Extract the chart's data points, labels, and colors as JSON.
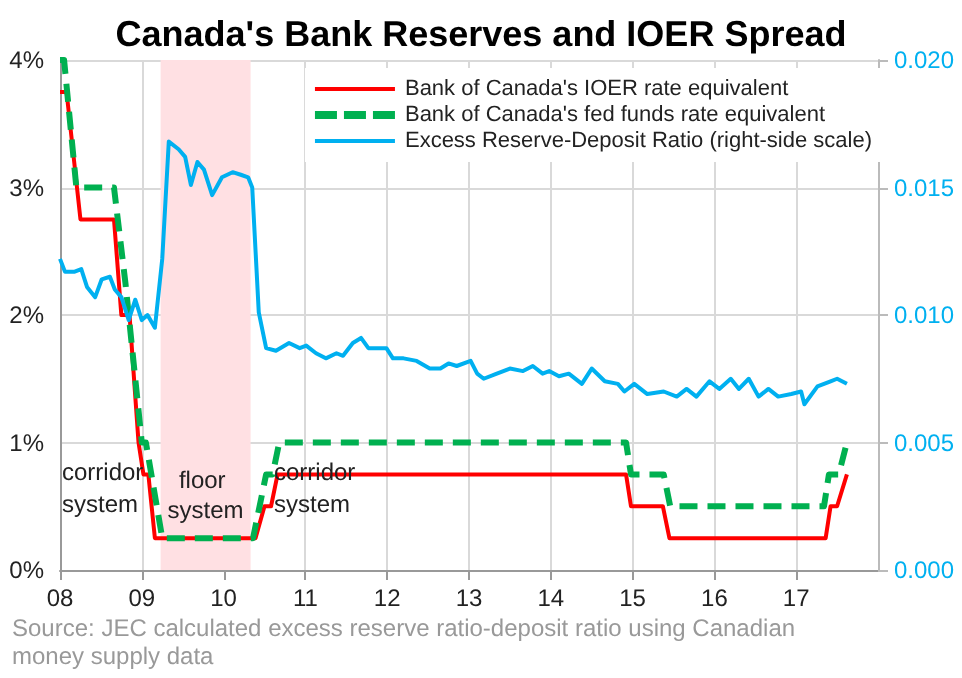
{
  "chart_data": {
    "type": "line",
    "title": "Canada's Bank Reserves and IOER Spread",
    "xlim": [
      2008,
      2018
    ],
    "xticks": [
      {
        "value": 2008,
        "label": "08"
      },
      {
        "value": 2009,
        "label": "09"
      },
      {
        "value": 2010,
        "label": "10"
      },
      {
        "value": 2011,
        "label": "11"
      },
      {
        "value": 2012,
        "label": "12"
      },
      {
        "value": 2013,
        "label": "13"
      },
      {
        "value": 2014,
        "label": "14"
      },
      {
        "value": 2015,
        "label": "15"
      },
      {
        "value": 2016,
        "label": "16"
      },
      {
        "value": 2017,
        "label": "17"
      }
    ],
    "ylim": [
      0,
      4
    ],
    "yticks": [
      {
        "value": 0,
        "label": "0%"
      },
      {
        "value": 1,
        "label": "1%"
      },
      {
        "value": 2,
        "label": "2%"
      },
      {
        "value": 3,
        "label": "3%"
      },
      {
        "value": 4,
        "label": "4%"
      }
    ],
    "y2lim": [
      0,
      0.02
    ],
    "y2ticks": [
      {
        "value": 0,
        "label": "0.000"
      },
      {
        "value": 0.005,
        "label": "0.005"
      },
      {
        "value": 0.01,
        "label": "0.010"
      },
      {
        "value": 0.015,
        "label": "0.015"
      },
      {
        "value": 0.02,
        "label": "0.020"
      }
    ],
    "grid": true,
    "legend": "top right",
    "marker": "none",
    "series": [
      {
        "name": "Bank of Canada's IOER rate equivalent",
        "color": "#ff0000",
        "line_style": "solid",
        "x": [
          2008,
          2008.08,
          2008.25,
          2008.66,
          2008.75,
          2008.85,
          2008.96,
          2009.02,
          2009.08,
          2009.16,
          2010.39,
          2010.5,
          2010.58,
          2010.66,
          2014.92,
          2014.98,
          2015.37,
          2015.45,
          2017.36,
          2017.42,
          2017.5,
          2017.62
        ],
        "values": [
          3.75,
          3.75,
          2.75,
          2.75,
          2,
          2,
          1,
          0.75,
          0.75,
          0.25,
          0.25,
          0.5,
          0.5,
          0.75,
          0.75,
          0.5,
          0.5,
          0.25,
          0.25,
          0.5,
          0.5,
          0.75
        ]
      },
      {
        "name": "Bank of Canada's fed funds rate equivalent",
        "color": "#00b050",
        "line_style": "dashed",
        "x": [
          2008,
          2008.05,
          2008.2,
          2008.66,
          2008.8,
          2009,
          2009.05,
          2009.25,
          2010.36,
          2010.52,
          2010.6,
          2010.68,
          2014.92,
          2014.98,
          2015.38,
          2015.46,
          2017.34,
          2017.4,
          2017.52,
          2017.62
        ],
        "values": [
          4,
          4,
          3,
          3,
          2.25,
          1,
          1,
          0.25,
          0.25,
          0.75,
          0.75,
          1,
          1,
          0.75,
          0.75,
          0.5,
          0.5,
          0.75,
          0.75,
          1
        ]
      },
      {
        "name": "Excess Reserve-Deposit Ratio (right-side scale)",
        "color": "#00b0f0",
        "line_style": "solid",
        "axis": "y2",
        "x": [
          2008,
          2008.06,
          2008.18,
          2008.26,
          2008.33,
          2008.43,
          2008.51,
          2008.61,
          2008.67,
          2008.75,
          2008.84,
          2008.92,
          2009,
          2009.07,
          2009.16,
          2009.25,
          2009.33,
          2009.45,
          2009.53,
          2009.6,
          2009.68,
          2009.76,
          2009.86,
          2009.98,
          2010.11,
          2010.21,
          2010.3,
          2010.35,
          2010.43,
          2010.52,
          2010.64,
          2010.8,
          2010.93,
          2011.01,
          2011.13,
          2011.25,
          2011.38,
          2011.46,
          2011.58,
          2011.68,
          2011.77,
          2011.87,
          2011.99,
          2012.07,
          2012.2,
          2012.36,
          2012.52,
          2012.65,
          2012.75,
          2012.85,
          2013.02,
          2013.1,
          2013.18,
          2013.34,
          2013.5,
          2013.66,
          2013.78,
          2013.9,
          2013.98,
          2014.1,
          2014.22,
          2014.38,
          2014.5,
          2014.66,
          2014.82,
          2014.9,
          2015.02,
          2015.18,
          2015.38,
          2015.54,
          2015.66,
          2015.78,
          2015.94,
          2016.06,
          2016.2,
          2016.3,
          2016.42,
          2016.54,
          2016.66,
          2016.78,
          2016.94,
          2017.06,
          2017.1,
          2017.26,
          2017.42,
          2017.5,
          2017.62
        ],
        "values": [
          0.0122,
          0.0117,
          0.0117,
          0.0118,
          0.0111,
          0.0107,
          0.0114,
          0.0115,
          0.011,
          0.0107,
          0.0098,
          0.0106,
          0.0098,
          0.01,
          0.0095,
          0.0122,
          0.0168,
          0.0165,
          0.0162,
          0.0151,
          0.016,
          0.0157,
          0.0147,
          0.0154,
          0.0156,
          0.0155,
          0.0154,
          0.015,
          0.0101,
          0.0087,
          0.0086,
          0.0089,
          0.0087,
          0.0088,
          0.0085,
          0.0083,
          0.0085,
          0.0084,
          0.0089,
          0.0091,
          0.0087,
          0.0087,
          0.0087,
          0.0083,
          0.0083,
          0.0082,
          0.0079,
          0.0079,
          0.0081,
          0.008,
          0.0082,
          0.0077,
          0.0075,
          0.0077,
          0.0079,
          0.0078,
          0.008,
          0.0077,
          0.0078,
          0.0076,
          0.0077,
          0.0073,
          0.0079,
          0.0074,
          0.0073,
          0.007,
          0.0073,
          0.0069,
          0.007,
          0.0068,
          0.0071,
          0.0068,
          0.0074,
          0.0071,
          0.0075,
          0.0071,
          0.0075,
          0.0068,
          0.0071,
          0.0068,
          0.0069,
          0.007,
          0.0065,
          0.0072,
          0.0074,
          0.0075,
          0.0073
        ]
      }
    ],
    "bands": [
      {
        "axis": "x",
        "from": 2009.23,
        "to": 2010.33,
        "label": "floor system",
        "color": "#ffe0e3"
      }
    ],
    "annotations": [
      "corridor system",
      "corridor system",
      "Source: JEC calculated excess reserve ratio-deposit ratio using Canadian money supply data"
    ]
  }
}
